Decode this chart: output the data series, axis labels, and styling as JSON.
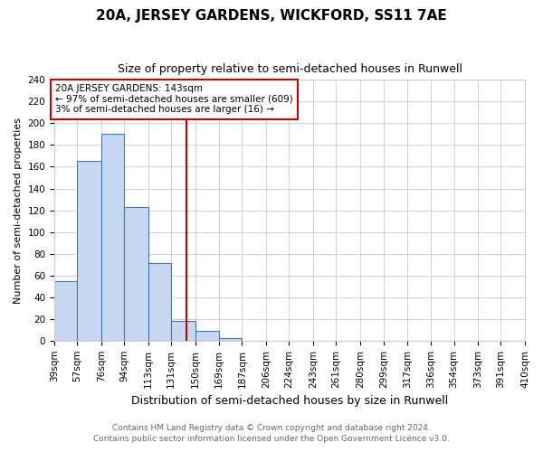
{
  "title": "20A, JERSEY GARDENS, WICKFORD, SS11 7AE",
  "subtitle": "Size of property relative to semi-detached houses in Runwell",
  "xlabel": "Distribution of semi-detached houses by size in Runwell",
  "ylabel": "Number of semi-detached properties",
  "footnote1": "Contains HM Land Registry data © Crown copyright and database right 2024.",
  "footnote2": "Contains public sector information licensed under the Open Government Licence v3.0.",
  "bin_labels": [
    "39sqm",
    "57sqm",
    "76sqm",
    "94sqm",
    "113sqm",
    "131sqm",
    "150sqm",
    "169sqm",
    "187sqm",
    "206sqm",
    "224sqm",
    "243sqm",
    "261sqm",
    "280sqm",
    "299sqm",
    "317sqm",
    "336sqm",
    "354sqm",
    "373sqm",
    "391sqm",
    "410sqm"
  ],
  "bar_values": [
    55,
    165,
    190,
    123,
    71,
    18,
    9,
    2,
    0,
    0,
    0,
    0,
    0,
    0,
    0,
    0,
    0,
    0,
    0,
    0
  ],
  "ylim": [
    0,
    240
  ],
  "yticks": [
    0,
    20,
    40,
    60,
    80,
    100,
    120,
    140,
    160,
    180,
    200,
    220,
    240
  ],
  "property_line_x": 143,
  "bin_edges": [
    39,
    57,
    76,
    94,
    113,
    131,
    150,
    169,
    187,
    206,
    224,
    243,
    261,
    280,
    299,
    317,
    336,
    354,
    373,
    391,
    410
  ],
  "annotation_title": "20A JERSEY GARDENS: 143sqm",
  "annotation_line1": "← 97% of semi-detached houses are smaller (609)",
  "annotation_line2": "3% of semi-detached houses are larger (16) →",
  "bar_color": "#c6d9f0",
  "bar_edge_color": "#4472c4",
  "line_color": "#cc0000",
  "box_edge_color": "#cc0000",
  "background_color": "#ffffff",
  "grid_color": "#c0c0c0",
  "title_fontsize": 11,
  "subtitle_fontsize": 9,
  "ylabel_fontsize": 8,
  "xlabel_fontsize": 9,
  "tick_fontsize": 7.5,
  "annotation_fontsize": 7.5,
  "footnote_fontsize": 6.5
}
